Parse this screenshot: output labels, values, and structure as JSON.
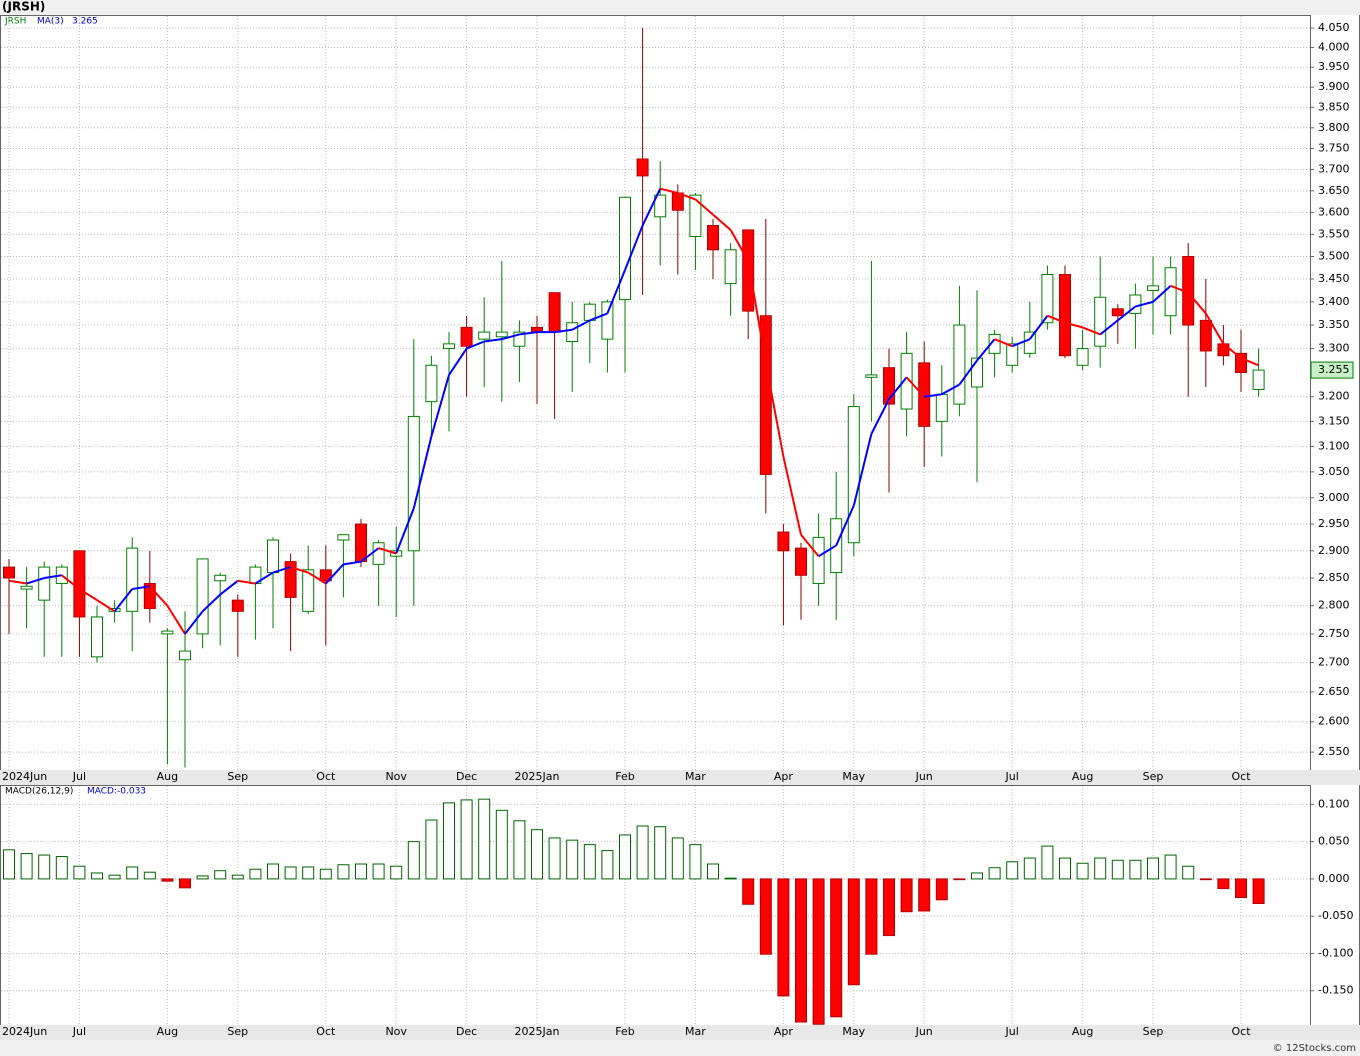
{
  "chart_data": [
    {
      "type": "candlestick",
      "title": "(JRSH)",
      "symbol": "JRSH",
      "log_scale": true,
      "grid": true,
      "up_color": "#008000",
      "down_color": "#ff0000",
      "categories": [
        "2024Jun",
        null,
        null,
        null,
        "Jul",
        null,
        null,
        null,
        null,
        "Aug",
        null,
        null,
        null,
        "Sep",
        null,
        null,
        null,
        null,
        "Oct",
        null,
        null,
        null,
        "Nov",
        null,
        null,
        null,
        "Dec",
        null,
        null,
        null,
        "2025Jan",
        null,
        null,
        null,
        null,
        "Feb",
        null,
        null,
        null,
        "Mar",
        null,
        null,
        null,
        null,
        "Apr",
        null,
        null,
        null,
        "May",
        null,
        null,
        null,
        "Jun",
        null,
        null,
        null,
        null,
        "Jul",
        null,
        null,
        null,
        "Aug",
        null,
        null,
        null,
        "Sep",
        null,
        null,
        null,
        null,
        "Oct",
        null
      ],
      "open": [
        2.87,
        2.83,
        2.81,
        2.84,
        2.9,
        2.71,
        2.79,
        2.79,
        2.84,
        2.75,
        2.705,
        2.75,
        2.845,
        2.81,
        2.84,
        2.86,
        2.88,
        2.79,
        2.865,
        2.92,
        2.95,
        2.875,
        2.89,
        2.9,
        3.19,
        3.3,
        3.345,
        3.32,
        3.325,
        3.305,
        3.345,
        3.42,
        3.315,
        3.36,
        3.32,
        3.405,
        3.725,
        3.59,
        3.645,
        3.545,
        3.57,
        3.44,
        3.56,
        3.37,
        2.935,
        2.905,
        2.84,
        2.86,
        2.915,
        3.24,
        3.26,
        3.175,
        3.27,
        3.15,
        3.185,
        3.22,
        3.29,
        3.265,
        3.29,
        3.355,
        3.46,
        3.265,
        3.305,
        3.385,
        3.375,
        3.425,
        3.37,
        3.5,
        3.36,
        3.31,
        3.29,
        3.215
      ],
      "high": [
        2.885,
        2.87,
        2.88,
        2.875,
        2.9,
        2.8,
        2.81,
        2.925,
        2.9,
        2.76,
        2.79,
        2.885,
        2.86,
        2.82,
        2.875,
        2.925,
        2.895,
        2.91,
        2.91,
        2.93,
        2.96,
        2.92,
        2.945,
        3.32,
        3.285,
        3.335,
        3.37,
        3.41,
        3.49,
        3.36,
        3.37,
        3.42,
        3.4,
        3.4,
        3.405,
        3.635,
        4.05,
        3.72,
        3.665,
        3.645,
        3.585,
        3.53,
        3.56,
        3.585,
        2.95,
        2.915,
        2.97,
        3.05,
        3.205,
        3.49,
        3.3,
        3.335,
        3.315,
        3.265,
        3.435,
        3.425,
        3.34,
        3.325,
        3.4,
        3.48,
        3.48,
        3.34,
        3.5,
        3.395,
        3.44,
        3.5,
        3.5,
        3.53,
        3.45,
        3.35,
        3.34,
        3.3
      ],
      "low": [
        2.75,
        2.76,
        2.71,
        2.71,
        2.71,
        2.7,
        2.77,
        2.72,
        2.77,
        2.53,
        2.525,
        2.725,
        2.73,
        2.71,
        2.74,
        2.76,
        2.72,
        2.785,
        2.73,
        2.815,
        2.87,
        2.8,
        2.78,
        2.8,
        3.12,
        3.13,
        3.2,
        3.22,
        3.19,
        3.23,
        3.185,
        3.155,
        3.21,
        3.27,
        3.25,
        3.25,
        3.415,
        3.48,
        3.46,
        3.47,
        3.45,
        3.37,
        3.32,
        2.97,
        2.765,
        2.775,
        2.8,
        2.775,
        2.89,
        3.15,
        3.01,
        3.12,
        3.06,
        3.08,
        3.16,
        3.03,
        3.24,
        3.25,
        3.28,
        3.34,
        3.28,
        3.255,
        3.26,
        3.31,
        3.3,
        3.33,
        3.33,
        3.2,
        3.22,
        3.265,
        3.21,
        3.2
      ],
      "close": [
        2.85,
        2.835,
        2.87,
        2.87,
        2.78,
        2.78,
        2.795,
        2.905,
        2.795,
        2.755,
        2.72,
        2.885,
        2.855,
        2.79,
        2.87,
        2.92,
        2.815,
        2.865,
        2.845,
        2.93,
        2.88,
        2.915,
        2.9,
        3.16,
        3.265,
        3.31,
        3.305,
        3.335,
        3.335,
        3.335,
        3.335,
        3.335,
        3.355,
        3.395,
        3.4,
        3.635,
        3.685,
        3.64,
        3.605,
        3.64,
        3.515,
        3.515,
        3.38,
        3.045,
        2.9,
        2.855,
        2.925,
        2.96,
        3.18,
        3.245,
        3.185,
        3.29,
        3.14,
        3.205,
        3.35,
        3.28,
        3.33,
        3.31,
        3.335,
        3.46,
        3.285,
        3.3,
        3.41,
        3.37,
        3.415,
        3.435,
        3.475,
        3.35,
        3.295,
        3.285,
        3.25,
        3.255
      ],
      "series": [
        {
          "name": "MA(3)",
          "color": "#0000ff",
          "down_color": "#ff0000",
          "legend_value": 3.265,
          "values": [
            2.845,
            2.84,
            2.85,
            2.855,
            2.83,
            2.81,
            2.79,
            2.83,
            2.835,
            2.8,
            2.75,
            2.79,
            2.82,
            2.845,
            2.84,
            2.86,
            2.87,
            2.86,
            2.84,
            2.875,
            2.88,
            2.905,
            2.895,
            2.98,
            3.12,
            3.245,
            3.3,
            3.315,
            3.32,
            3.33,
            3.335,
            3.335,
            3.34,
            3.36,
            3.375,
            3.47,
            3.57,
            3.655,
            3.645,
            3.63,
            3.595,
            3.56,
            3.49,
            3.27,
            3.08,
            2.93,
            2.89,
            2.91,
            2.985,
            3.125,
            3.195,
            3.24,
            3.2,
            3.205,
            3.225,
            3.275,
            3.32,
            3.305,
            3.32,
            3.37,
            3.355,
            3.345,
            3.33,
            3.36,
            3.39,
            3.4,
            3.435,
            3.42,
            3.375,
            3.31,
            3.28,
            3.265
          ]
        }
      ],
      "last_price": 3.255,
      "ylim": [
        2.521,
        4.084
      ],
      "yticks": [
        {
          "value": 2.55,
          "label": "2.550"
        },
        {
          "value": 2.6,
          "label": "2.600"
        },
        {
          "value": 2.65,
          "label": "2.650"
        },
        {
          "value": 2.7,
          "label": "2.700"
        },
        {
          "value": 2.75,
          "label": "2.750"
        },
        {
          "value": 2.8,
          "label": "2.800"
        },
        {
          "value": 2.85,
          "label": "2.850"
        },
        {
          "value": 2.9,
          "label": "2.900"
        },
        {
          "value": 2.95,
          "label": "2.950"
        },
        {
          "value": 3.0,
          "label": "3.000"
        },
        {
          "value": 3.05,
          "label": "3.050"
        },
        {
          "value": 3.1,
          "label": "3.100"
        },
        {
          "value": 3.15,
          "label": "3.150"
        },
        {
          "value": 3.2,
          "label": "3.200"
        },
        {
          "value": 3.3,
          "label": "3.300"
        },
        {
          "value": 3.35,
          "label": "3.350"
        },
        {
          "value": 3.4,
          "label": "3.400"
        },
        {
          "value": 3.45,
          "label": "3.450"
        },
        {
          "value": 3.5,
          "label": "3.500"
        },
        {
          "value": 3.55,
          "label": "3.550"
        },
        {
          "value": 3.6,
          "label": "3.600"
        },
        {
          "value": 3.65,
          "label": "3.650"
        },
        {
          "value": 3.7,
          "label": "3.700"
        },
        {
          "value": 3.75,
          "label": "3.750"
        },
        {
          "value": 3.8,
          "label": "3.800"
        },
        {
          "value": 3.85,
          "label": "3.850"
        },
        {
          "value": 3.9,
          "label": "3.900"
        },
        {
          "value": 3.95,
          "label": "3.950"
        },
        {
          "value": 4.0,
          "label": "4.000"
        },
        {
          "value": 4.05,
          "label": "4.050"
        }
      ]
    },
    {
      "type": "bar",
      "title": "MACD(26,12,9)",
      "legend_text": "MACD:-0.033",
      "grid": true,
      "up_color": "#006400",
      "down_color": "#ff0000",
      "values": [
        0.039,
        0.034,
        0.032,
        0.03,
        0.017,
        0.008,
        0.005,
        0.016,
        0.009,
        -0.003,
        -0.012,
        0.004,
        0.011,
        0.005,
        0.013,
        0.02,
        0.016,
        0.016,
        0.013,
        0.019,
        0.02,
        0.02,
        0.017,
        0.05,
        0.079,
        0.102,
        0.106,
        0.107,
        0.092,
        0.078,
        0.066,
        0.055,
        0.052,
        0.046,
        0.038,
        0.059,
        0.071,
        0.07,
        0.055,
        0.046,
        0.02,
        0.001,
        -0.034,
        -0.101,
        -0.157,
        -0.192,
        -0.195,
        -0.185,
        -0.142,
        -0.101,
        -0.076,
        -0.044,
        -0.043,
        -0.028,
        -0.001,
        0.008,
        0.015,
        0.023,
        0.028,
        0.044,
        0.028,
        0.021,
        0.028,
        0.025,
        0.025,
        0.028,
        0.032,
        0.017,
        -0.001,
        -0.013,
        -0.025,
        -0.033
      ],
      "ylim": [
        -0.196,
        0.126
      ],
      "yticks": [
        {
          "value": 0.1,
          "label": "0.100"
        },
        {
          "value": 0.05,
          "label": "0.050"
        },
        {
          "value": 0,
          "label": "0.000"
        },
        {
          "value": -0.05,
          "label": "-0.050"
        },
        {
          "value": -0.1,
          "label": "-0.100"
        },
        {
          "value": -0.15,
          "label": "-0.150"
        }
      ]
    }
  ],
  "footer": "© 12Stocks.com"
}
